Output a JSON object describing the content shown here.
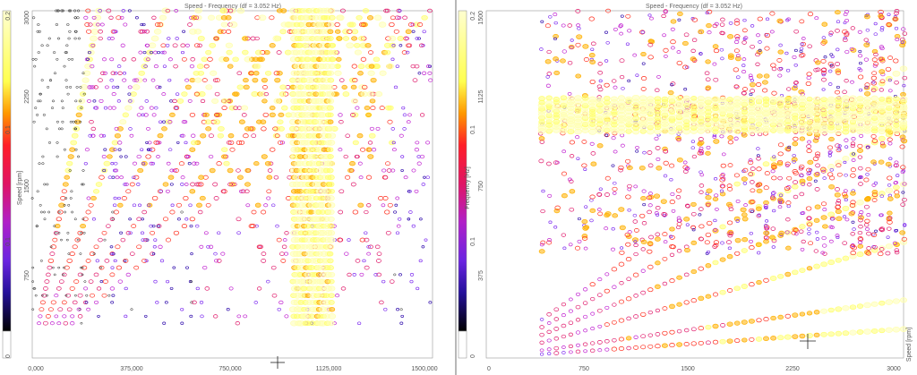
{
  "chart_data": [
    {
      "type": "scatter",
      "title": "Speed - Frequency (df = 3.052 Hz)",
      "xlabel": "",
      "ylabel": "Speed [rpm]",
      "x_ticks": [
        "0,000",
        "375,000",
        "750,000",
        "1125,000",
        "1500,000"
      ],
      "x_tick_values": [
        0,
        375,
        750,
        1125,
        1500
      ],
      "xlim": [
        0,
        1500
      ],
      "y_ticks": [
        "750",
        "1500",
        "2250",
        "3000"
      ],
      "y_tick_values": [
        750,
        1500,
        2250,
        3000
      ],
      "ylim": [
        0,
        3000
      ],
      "colorbar_ticks": [
        "0.2",
        "0.1",
        "0.1",
        "0"
      ],
      "colorbar_tick_values": [
        0.2,
        0.1,
        0.1,
        0
      ],
      "colorbar_side": "left",
      "colorbar_colors": [
        "#ffffd0",
        "#ffff60",
        "#ffa000",
        "#ff2020",
        "#e0105a",
        "#b020c0",
        "#7020e0",
        "#2a10a0",
        "#000000"
      ],
      "orders": [
        0.5,
        1,
        1.5,
        2,
        2.5,
        3
      ],
      "structural_band_x": [
        980,
        1130
      ],
      "grid": false,
      "legend": "none"
    },
    {
      "type": "scatter",
      "title": "Speed - Frequency (df = 3.052 Hz)",
      "xlabel": "Speed [rpm]",
      "ylabel": "Frequency [Hz]",
      "x_ticks": [
        "0",
        "750",
        "1500",
        "2250",
        "3000"
      ],
      "x_tick_values": [
        0,
        750,
        1500,
        2250,
        3000
      ],
      "xlim": [
        0,
        3000
      ],
      "y_ticks": [
        "375",
        "750",
        "1125",
        "1500"
      ],
      "y_tick_values": [
        375,
        750,
        1125,
        1500
      ],
      "ylim": [
        0,
        1500
      ],
      "colorbar_ticks": [
        "0.2",
        "0.1",
        "0.1",
        "0"
      ],
      "colorbar_tick_values": [
        0.2,
        0.1,
        0.1,
        0
      ],
      "colorbar_side": "left",
      "colorbar_colors": [
        "#ffffd0",
        "#ffff60",
        "#ffa000",
        "#ff2020",
        "#e0105a",
        "#b020c0",
        "#7020e0",
        "#2a10a0",
        "#000000"
      ],
      "orders": [
        0.25,
        0.5,
        1,
        1.5,
        2,
        2.5
      ],
      "structural_band_y": [
        980,
        1130
      ],
      "grid": false,
      "legend": "none"
    }
  ],
  "left": {
    "title": "Speed - Frequency (df = 3.052 Hz)",
    "axis_label_y": "Speed [rpm]",
    "colorbar_label": "",
    "x_ticks": [
      "0,000",
      "375,000",
      "750,000",
      "1125,000",
      "1500,000"
    ],
    "y_ticks": [
      "750",
      "1500",
      "2250",
      "3000"
    ],
    "colorbar_ticks": [
      "0.2",
      "0.1",
      "0.1",
      "0"
    ]
  },
  "right": {
    "title": "Speed - Frequency (df = 3.052 Hz)",
    "axis_label_y": "Frequency [Hz]",
    "axis_label_x": "Speed [rpm]",
    "x_ticks": [
      "0",
      "750",
      "1500",
      "2250",
      "3000"
    ],
    "y_ticks": [
      "375",
      "750",
      "1125",
      "1500"
    ],
    "colorbar_ticks": [
      "0.2",
      "0.1",
      "0.1",
      "0"
    ]
  }
}
